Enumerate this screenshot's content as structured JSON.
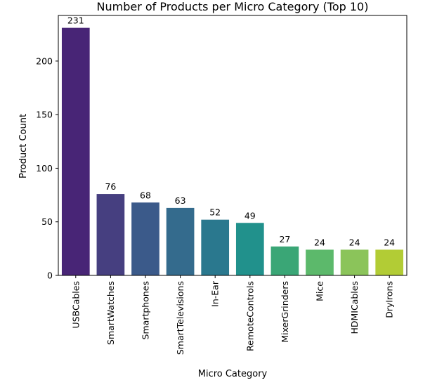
{
  "chart_data": {
    "type": "bar",
    "title": "Number of Products per Micro Category (Top 10)",
    "xlabel": "Micro Category",
    "ylabel": "Product Count",
    "categories": [
      "USBCables",
      "SmartWatches",
      "Smartphones",
      "SmartTelevisions",
      "In-Ear",
      "RemoteControls",
      "MixerGrinders",
      "Mice",
      "HDMICables",
      "DryIrons"
    ],
    "values": [
      231,
      76,
      68,
      63,
      52,
      49,
      27,
      24,
      24,
      24
    ],
    "ylim": [
      0,
      242.55
    ],
    "yticks": [
      0,
      50,
      100,
      150,
      200
    ],
    "grid": false,
    "legend": "none",
    "colors": [
      "#482576",
      "#463f80",
      "#3b5a8a",
      "#346b8d",
      "#2a788e",
      "#21918c",
      "#3aa676",
      "#5cb96b",
      "#8bc45a",
      "#b2cc35"
    ]
  }
}
